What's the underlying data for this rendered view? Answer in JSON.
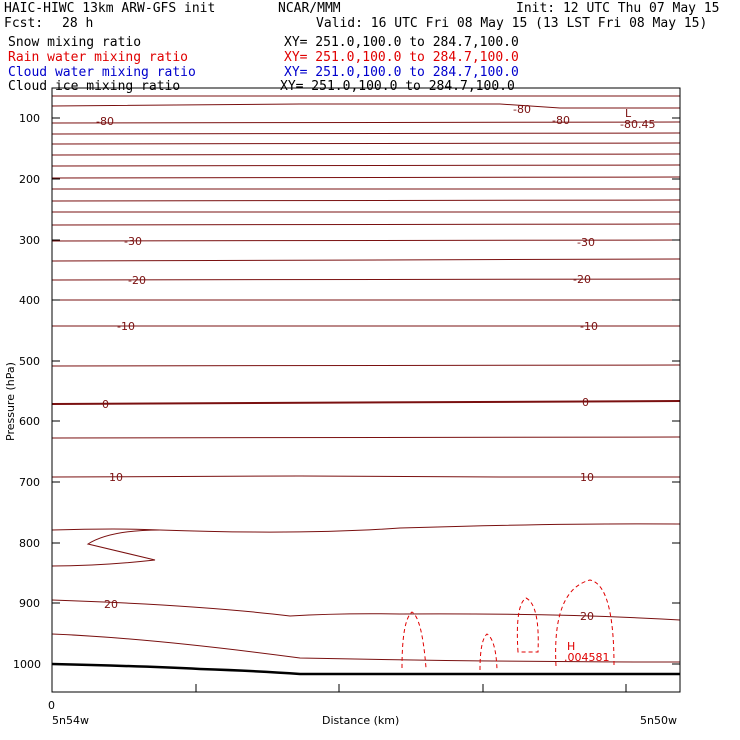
{
  "header": {
    "model_title": "HAIC-HIWC 13km ARW-GFS init",
    "agency": "NCAR/MMM",
    "init": "Init: 12 UTC Thu 07 May 15",
    "fcst_label": "Fcst:",
    "fcst_value": "28 h",
    "valid": "Valid: 16 UTC Fri 08 May 15 (13 LST Fri 08 May 15)"
  },
  "fields": [
    {
      "name": "Snow mixing ratio",
      "xy": "XY= 251.0,100.0 to 284.7,100.0",
      "color": "#000000"
    },
    {
      "name": "Rain water mixing ratio",
      "xy": "XY= 251.0,100.0 to 284.7,100.0",
      "color": "#e00000"
    },
    {
      "name": "Cloud water mixing ratio",
      "xy": "XY= 251.0,100.0 to 284.7,100.0",
      "color": "#0000cc"
    },
    {
      "name": "Cloud ice mixing ratio",
      "xy": "XY= 251.0,100.0 to 284.7,100.0",
      "color": "#000000"
    }
  ],
  "axes": {
    "y_title": "Pressure (hPa)",
    "y_ticks": [
      "100",
      "200",
      "300",
      "400",
      "500",
      "600",
      "700",
      "800",
      "900",
      "1000"
    ],
    "x_title": "Distance (km)",
    "x_origin": "0",
    "x_left": "5n54w",
    "x_right": "5n50w"
  },
  "contour_labels": [
    "-80",
    "-80",
    "-80",
    "-80.45",
    "L",
    "-30",
    "-30",
    "-20",
    "-20",
    "-10",
    "-10",
    "0",
    "0",
    "10",
    "10",
    "20",
    "20",
    "H",
    ".004581"
  ],
  "colors": {
    "temperature": "#7a1010",
    "rain": "#e00000",
    "terrain": "#000000"
  }
}
